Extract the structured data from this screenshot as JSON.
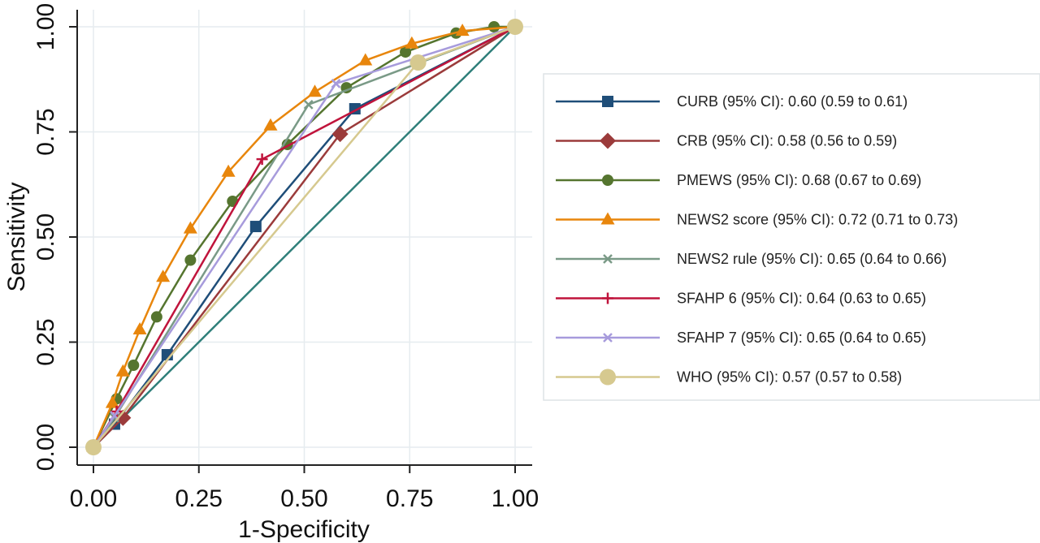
{
  "chart_data": {
    "type": "line",
    "title": "",
    "xlabel": "1-Specificity",
    "ylabel": "Sensitivity",
    "xlim": [
      0,
      1
    ],
    "ylim": [
      0,
      1
    ],
    "xticks": [
      "0.00",
      "0.25",
      "0.50",
      "0.75",
      "1.00"
    ],
    "yticks": [
      "0.00",
      "0.25",
      "0.50",
      "0.75",
      "1.00"
    ],
    "grid": true,
    "legend_position": "right",
    "reference_line": {
      "x": [
        0,
        1
      ],
      "y": [
        0,
        1
      ],
      "color": "#2f7f7a"
    },
    "series": [
      {
        "name": "CURB (95% CI): 0.60 (0.59 to 0.61)",
        "color": "#1f4e79",
        "marker": "square",
        "x": [
          0,
          0.05,
          0.175,
          0.385,
          0.62,
          1.0
        ],
        "y": [
          0,
          0.055,
          0.22,
          0.525,
          0.805,
          1.0
        ]
      },
      {
        "name": "CRB (95% CI): 0.58 (0.56 to 0.59)",
        "color": "#9b3b3b",
        "marker": "diamond",
        "x": [
          0,
          0.07,
          0.585,
          1.0
        ],
        "y": [
          0,
          0.07,
          0.745,
          1.0
        ]
      },
      {
        "name": "PMEWS (95% CI): 0.68  (0.67 to 0.69)",
        "color": "#55752f",
        "marker": "circle",
        "x": [
          0,
          0.055,
          0.095,
          0.15,
          0.23,
          0.33,
          0.46,
          0.6,
          0.74,
          0.86,
          0.95,
          1.0
        ],
        "y": [
          0,
          0.115,
          0.195,
          0.31,
          0.445,
          0.585,
          0.72,
          0.855,
          0.94,
          0.985,
          1.0,
          1.0
        ]
      },
      {
        "name": "NEWS2 score (95% CI): 0.72  (0.71 to 0.73)",
        "color": "#e8860c",
        "marker": "triangle",
        "x": [
          0,
          0.045,
          0.07,
          0.11,
          0.165,
          0.23,
          0.32,
          0.42,
          0.525,
          0.645,
          0.755,
          0.875,
          1.0
        ],
        "y": [
          0,
          0.105,
          0.18,
          0.28,
          0.405,
          0.52,
          0.655,
          0.765,
          0.845,
          0.92,
          0.96,
          0.99,
          1.0
        ]
      },
      {
        "name": "NEWS2 rule (95% CI): 0.65  (0.64 to 0.66)",
        "color": "#7a9a87",
        "marker": "x",
        "x": [
          0,
          0.05,
          0.51,
          1.0
        ],
        "y": [
          0,
          0.07,
          0.815,
          1.0
        ]
      },
      {
        "name": "SFAHP 6 (95% CI): 0.64  (0.63 to 0.65)",
        "color": "#c0143c",
        "marker": "plus",
        "x": [
          0,
          0.055,
          0.4,
          1.0
        ],
        "y": [
          0,
          0.085,
          0.685,
          1.0
        ]
      },
      {
        "name": "SFAHP 7 (95% CI): 0.65  (0.64 to 0.65)",
        "color": "#a79bdc",
        "marker": "x",
        "x": [
          0,
          0.05,
          0.575,
          1.0
        ],
        "y": [
          0,
          0.075,
          0.865,
          1.0
        ]
      },
      {
        "name": "WHO (95% CI): 0.57  (0.57 to 0.58)",
        "color": "#d6c98f",
        "marker": "bigcircle",
        "x": [
          0,
          0.77,
          1.0
        ],
        "y": [
          0,
          0.915,
          1.0
        ]
      }
    ]
  }
}
